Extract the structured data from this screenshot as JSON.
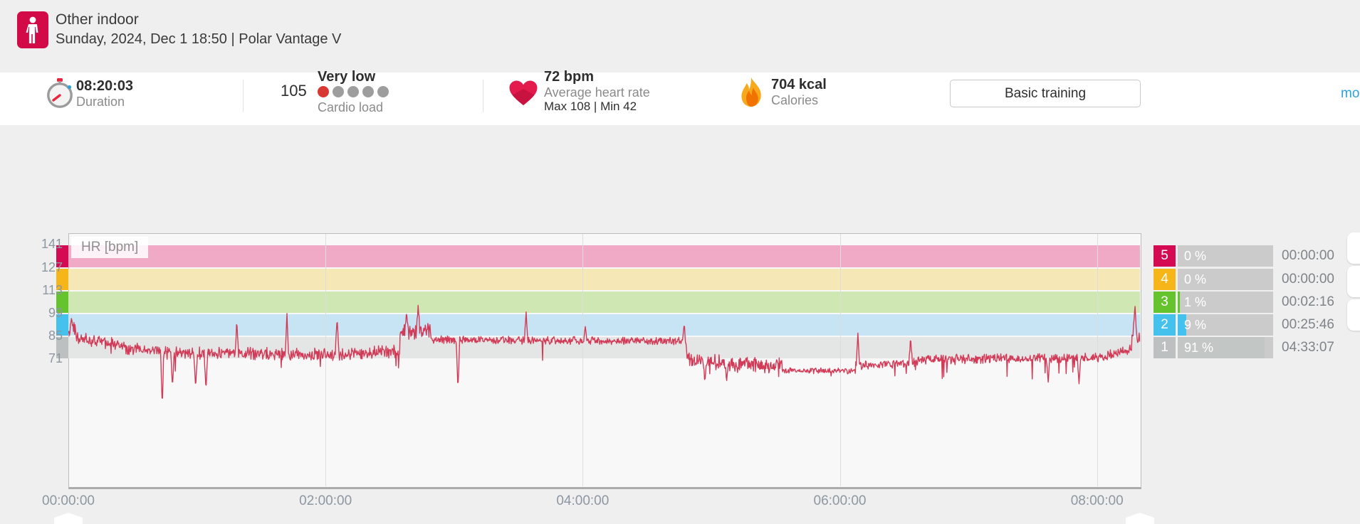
{
  "header": {
    "title": "Other indoor",
    "subtitle": "Sunday, 2024, Dec 1 18:50 | Polar Vantage V"
  },
  "stats": {
    "duration": {
      "value": "08:20:03",
      "label": "Duration"
    },
    "cardio_load": {
      "value": "105",
      "level": "Very low",
      "label": "Cardio load",
      "dots_total": 5,
      "dots_filled": 1,
      "dot_filled_color": "#d73831",
      "dot_empty_color": "#9d9d9d"
    },
    "heart_rate": {
      "value": "72 bpm",
      "label": "Average heart rate",
      "minmax": "Max 108  |  Min 42"
    },
    "calories": {
      "value": "704 kcal",
      "label": "Calories"
    },
    "benefit_button": "Basic training",
    "more_link": "mor"
  },
  "chart_data": {
    "type": "line",
    "title": "HR [bpm]",
    "x_axis": {
      "ticks": [
        "00:00:00",
        "02:00:00",
        "04:00:00",
        "06:00:00",
        "08:00:00"
      ],
      "duration_hours": 8.334
    },
    "y_axis": {
      "ticks": [
        141,
        127,
        113,
        99,
        85,
        71
      ]
    },
    "zones": [
      {
        "zone": "5",
        "from": 127,
        "to": 141,
        "band": "#f1aac5",
        "marker": "#d40b52"
      },
      {
        "zone": "4",
        "from": 113,
        "to": 127,
        "band": "#f6e7b7",
        "marker": "#f6b518"
      },
      {
        "zone": "3",
        "from": 99,
        "to": 113,
        "band": "#cfe7b2",
        "marker": "#65c32d"
      },
      {
        "zone": "2",
        "from": 85,
        "to": 99,
        "band": "#c6e4f4",
        "marker": "#45c1ee"
      },
      {
        "zone": "1",
        "from": 71,
        "to": 85,
        "band": "#e4e5e5",
        "marker": "#bcc0c0"
      }
    ],
    "series": {
      "name": "HR",
      "color": "#d23b57",
      "segments": [
        [
          0.0,
          0.06,
          86,
          92,
          5,
          0,
          0
        ],
        [
          0.06,
          0.4,
          84,
          80,
          4,
          0.01,
          8
        ],
        [
          0.4,
          0.75,
          78,
          76,
          4,
          0.015,
          8
        ],
        [
          0.75,
          2.06,
          75,
          74,
          4,
          0.03,
          10
        ],
        [
          2.06,
          2.58,
          74,
          76,
          4,
          0.02,
          8
        ],
        [
          2.58,
          2.82,
          87,
          89,
          5,
          0,
          0
        ],
        [
          2.82,
          4.78,
          83,
          82,
          2.5,
          0.006,
          10
        ],
        [
          4.78,
          4.84,
          80,
          70,
          5,
          0,
          0
        ],
        [
          4.84,
          5.55,
          70,
          67,
          5,
          0.04,
          7
        ],
        [
          5.55,
          6.12,
          64,
          64,
          1.8,
          0.01,
          3
        ],
        [
          6.12,
          6.6,
          67,
          69,
          3,
          0.02,
          6
        ],
        [
          6.6,
          8.08,
          71,
          72,
          3,
          0.02,
          9
        ],
        [
          8.08,
          8.27,
          74,
          77,
          3,
          0,
          0
        ],
        [
          8.27,
          8.334,
          88,
          83,
          4,
          0,
          0
        ]
      ],
      "spikes": [
        [
          0.025,
          97
        ],
        [
          0.73,
          42
        ],
        [
          0.81,
          54
        ],
        [
          0.99,
          53
        ],
        [
          1.07,
          52
        ],
        [
          1.31,
          95
        ],
        [
          1.7,
          99
        ],
        [
          2.09,
          97
        ],
        [
          2.63,
          100
        ],
        [
          2.72,
          104
        ],
        [
          3.03,
          52
        ],
        [
          3.56,
          100
        ],
        [
          4.02,
          91
        ],
        [
          4.79,
          93
        ],
        [
          4.95,
          57
        ],
        [
          5.12,
          58
        ],
        [
          6.14,
          87
        ],
        [
          6.55,
          85
        ],
        [
          7.62,
          57
        ],
        [
          7.86,
          56
        ],
        [
          8.295,
          105
        ]
      ]
    },
    "summary": {
      "avg_bpm": 72,
      "max_bpm": 108,
      "min_bpm": 42
    }
  },
  "zone_table": {
    "rows": [
      {
        "zone": "5",
        "percent": "0 %",
        "pct": 0,
        "time": "00:00:00"
      },
      {
        "zone": "4",
        "percent": "0 %",
        "pct": 0,
        "time": "00:00:00"
      },
      {
        "zone": "3",
        "percent": "1 %",
        "pct": 1,
        "time": "00:02:16"
      },
      {
        "zone": "2",
        "percent": "9 %",
        "pct": 9,
        "time": "00:25:46"
      },
      {
        "zone": "1",
        "percent": "91 %",
        "pct": 91,
        "time": "04:33:07"
      }
    ],
    "zone1_fill_color": "#c2c6c5"
  }
}
